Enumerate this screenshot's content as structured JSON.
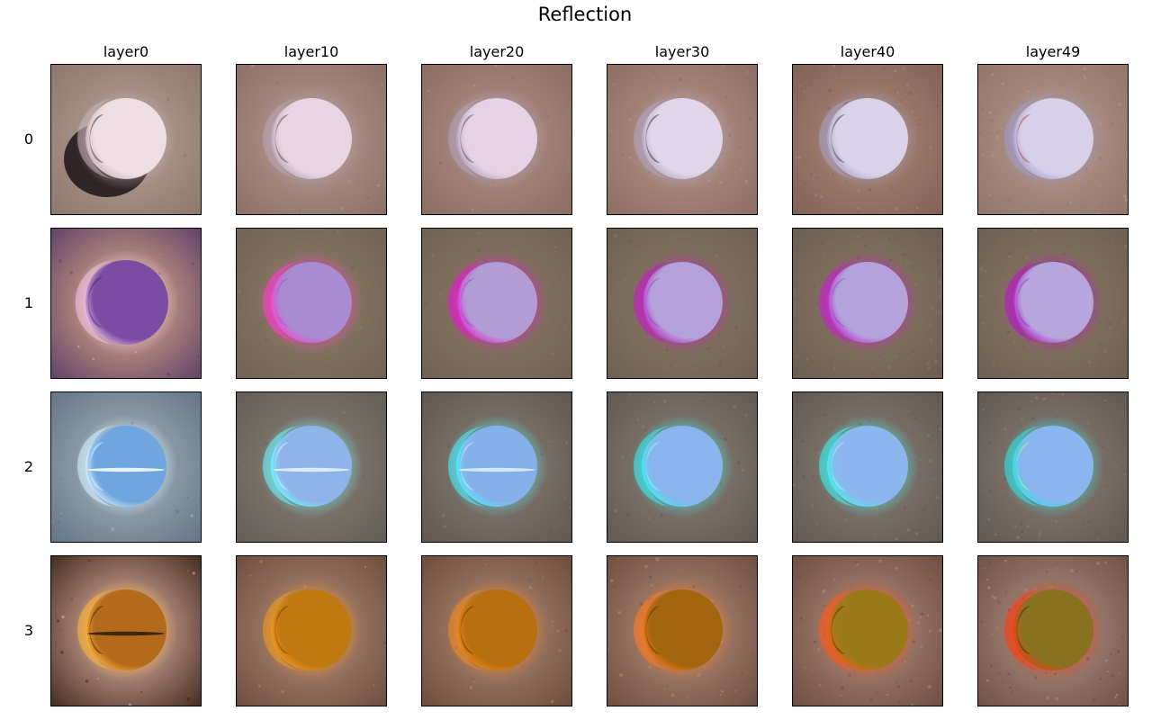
{
  "figure": {
    "title": "Reflection",
    "columns": [
      "layer0",
      "layer10",
      "layer20",
      "layer30",
      "layer40",
      "layer49"
    ],
    "rows": [
      "0",
      "1",
      "2",
      "3"
    ]
  },
  "images": [
    [
      {
        "bg1": "#b8a196",
        "bg2": "#8c7468",
        "sphere": "#eedfe4",
        "edge": "#c7b2ba",
        "accent": "#2a1e22",
        "noise": 0.1
      },
      {
        "bg1": "#b79c91",
        "bg2": "#8a6c63",
        "sphere": "#e7d6e1",
        "edge": "#b9a4b2",
        "accent": "#5a3c3c",
        "noise": 0.1
      },
      {
        "bg1": "#b49389",
        "bg2": "#886a5f",
        "sphere": "#e3d3e5",
        "edge": "#b3a2bb",
        "accent": "#4e3a4a",
        "noise": 0.2
      },
      {
        "bg1": "#b6978c",
        "bg2": "#8b6b60",
        "sphere": "#e1d5e8",
        "edge": "#b3a6c2",
        "accent": "#202030",
        "noise": 0.3
      },
      {
        "bg1": "#ad8a79",
        "bg2": "#7d5f53",
        "sphere": "#d9d2ea",
        "edge": "#a8a0c4",
        "accent": "#3a2a2a",
        "noise": 0.6
      },
      {
        "bg1": "#b79a8f",
        "bg2": "#8f7367",
        "sphere": "#d6d0ea",
        "edge": "#a39dc8",
        "accent": "#c0352a",
        "noise": 0.6
      }
    ],
    [
      {
        "bg1": "#e7b98f",
        "bg2": "#5b3b64",
        "sphere": "#7a4ca3",
        "edge": "#f2c6e6",
        "accent": "#3a1f5f",
        "noise": 0.1
      },
      {
        "bg1": "#8f7d68",
        "bg2": "#6f6150",
        "sphere": "#a88bd0",
        "edge": "#ff3dd0",
        "accent": "#9a58c8",
        "noise": 0.1
      },
      {
        "bg1": "#8f7c68",
        "bg2": "#6d5f50",
        "sphere": "#b29cd6",
        "edge": "#e81ad0",
        "accent": "#8a4cc0",
        "noise": 0.2
      },
      {
        "bg1": "#8f7b69",
        "bg2": "#6c5e4f",
        "sphere": "#b4a0da",
        "edge": "#c21bc5",
        "accent": "#8a4cc0",
        "noise": 0.3
      },
      {
        "bg1": "#8d7a67",
        "bg2": "#6b5c4e",
        "sphere": "#b4a2dc",
        "edge": "#c61fd0",
        "accent": "#8a4cc0",
        "noise": 0.6
      },
      {
        "bg1": "#8e7b68",
        "bg2": "#6c5d4f",
        "sphere": "#b7a6de",
        "edge": "#b815c6",
        "accent": "#7a3ab2",
        "noise": 0.6
      }
    ],
    [
      {
        "bg1": "#a8b7c2",
        "bg2": "#5f7282",
        "sphere": "#6fa6e0",
        "edge": "#d8f2ff",
        "accent": "#ffffff",
        "noise": 0.1
      },
      {
        "bg1": "#8d8479",
        "bg2": "#5f5a55",
        "sphere": "#8fb4ea",
        "edge": "#6ff6ff",
        "accent": "#e6f6ff",
        "noise": 0.1
      },
      {
        "bg1": "#8a8074",
        "bg2": "#5d554f",
        "sphere": "#86b0ea",
        "edge": "#4ff0ff",
        "accent": "#dff0ff",
        "noise": 0.2
      },
      {
        "bg1": "#8c8276",
        "bg2": "#5e5651",
        "sphere": "#89b4ec",
        "edge": "#39eef2",
        "accent": "#a8f6ff",
        "noise": 0.3
      },
      {
        "bg1": "#8b8176",
        "bg2": "#5e5650",
        "sphere": "#8cb7ee",
        "edge": "#3ff2f0",
        "accent": "#a8f6ff",
        "noise": 0.5
      },
      {
        "bg1": "#8c8175",
        "bg2": "#5e5550",
        "sphere": "#8ab5ee",
        "edge": "#2fe3e6",
        "accent": "#b2ff8a",
        "noise": 0.5
      }
    ],
    [
      {
        "bg1": "#f0c2b8",
        "bg2": "#3c2414",
        "sphere": "#b36a1a",
        "edge": "#ffb43a",
        "accent": "#2a1a0a",
        "noise": 0.1
      },
      {
        "bg1": "#b68e7b",
        "bg2": "#6a4a3a",
        "sphere": "#c07810",
        "edge": "#f09a20",
        "accent": "#6a3c08",
        "noise": 0.1
      },
      {
        "bg1": "#b48c79",
        "bg2": "#694938",
        "sphere": "#b86f10",
        "edge": "#f08a20",
        "accent": "#5a3408",
        "noise": 0.2
      },
      {
        "bg1": "#b68f7d",
        "bg2": "#6b4b3b",
        "sphere": "#a2660e",
        "edge": "#ff7a20",
        "accent": "#4e3208",
        "noise": 0.3
      },
      {
        "bg1": "#b38d7d",
        "bg2": "#6a4b3e",
        "sphere": "#9a7a18",
        "edge": "#ff5a1a",
        "accent": "#3e3208",
        "noise": 0.6
      },
      {
        "bg1": "#b39284",
        "bg2": "#6b4e42",
        "sphere": "#8a7320",
        "edge": "#ff3a10",
        "accent": "#2e2808",
        "noise": 0.7
      }
    ]
  ]
}
